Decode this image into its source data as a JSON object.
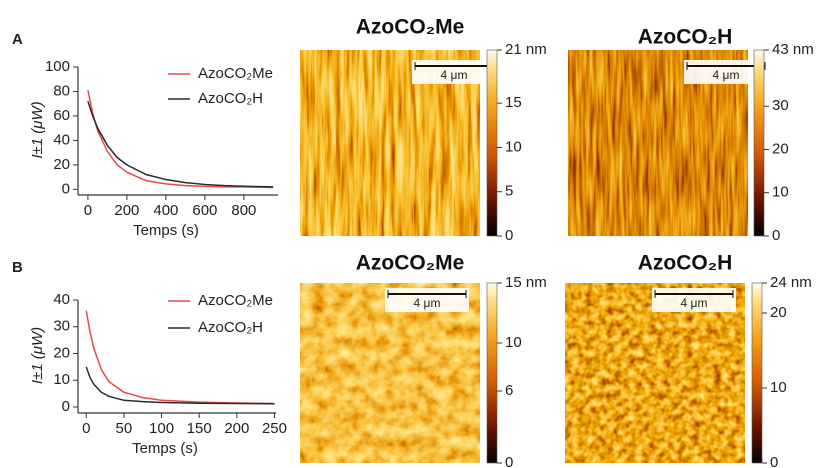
{
  "panel_labels": [
    "A",
    "B"
  ],
  "chart_data": [
    {
      "type": "line",
      "xlabel": "Temps (s)",
      "ylabel": "I±1  (μW)",
      "x": [
        0,
        25,
        50,
        100,
        150,
        200,
        300,
        400,
        500,
        600,
        700,
        800,
        950
      ],
      "series": [
        {
          "name": "AzoCO₂Me",
          "color": "#e8484a",
          "values": [
            81,
            62,
            48,
            31,
            20,
            14,
            7,
            4.5,
            3,
            2.5,
            2,
            2,
            1.5
          ]
        },
        {
          "name": "AzoCO₂H",
          "color": "#2a2a2a",
          "values": [
            72,
            60,
            50,
            36,
            26,
            20,
            12,
            8,
            5.5,
            4,
            3,
            2.5,
            2
          ]
        }
      ],
      "xlim": [
        -20,
        975
      ],
      "ylim": [
        -3,
        100
      ],
      "xticks": [
        0,
        200,
        400,
        600,
        800
      ],
      "yticks": [
        0,
        20,
        40,
        60,
        80,
        100
      ]
    },
    {
      "type": "line",
      "xlabel": "Temps (s)",
      "ylabel": "I±1  (μW)",
      "x": [
        0,
        5,
        10,
        20,
        30,
        50,
        75,
        100,
        150,
        200,
        250
      ],
      "series": [
        {
          "name": "AzoCO₂Me",
          "color": "#e8484a",
          "values": [
            36,
            28,
            22,
            14,
            9.5,
            5.5,
            3.5,
            2.5,
            1.8,
            1.5,
            1.3
          ]
        },
        {
          "name": "AzoCO₂H",
          "color": "#2a2a2a",
          "values": [
            15,
            11,
            8.5,
            5.5,
            4,
            2.5,
            2,
            1.7,
            1.4,
            1.3,
            1.2
          ]
        }
      ],
      "xlim": [
        -3,
        252
      ],
      "ylim": [
        -1.5,
        40
      ],
      "xticks": [
        0,
        50,
        100,
        150,
        200,
        250
      ],
      "yticks": [
        0,
        10,
        20,
        30,
        40
      ]
    }
  ],
  "images": [
    {
      "title": "AzoCO₂Me",
      "scale_bar": "4 μm",
      "colorbar": {
        "lim": [
          0,
          21
        ],
        "ticks": [
          0,
          5,
          10,
          15,
          {
            "value": 21,
            "label": "21 nm"
          }
        ]
      }
    },
    {
      "title": "AzoCO₂H",
      "scale_bar": "4 μm",
      "colorbar": {
        "lim": [
          0,
          43
        ],
        "ticks": [
          0,
          10,
          20,
          30,
          {
            "value": 43,
            "label": "43 nm"
          }
        ]
      }
    },
    {
      "title": "AzoCO₂Me",
      "scale_bar": "4 μm",
      "colorbar": {
        "lim": [
          0,
          15
        ],
        "ticks": [
          0,
          6,
          10,
          {
            "value": 15,
            "label": "15 nm"
          }
        ]
      }
    },
    {
      "title": "AzoCO₂H",
      "scale_bar": "4 μm",
      "colorbar": {
        "lim": [
          0,
          24
        ],
        "ticks": [
          0,
          10,
          20,
          {
            "value": 24,
            "label": "24 nm"
          }
        ]
      }
    }
  ]
}
